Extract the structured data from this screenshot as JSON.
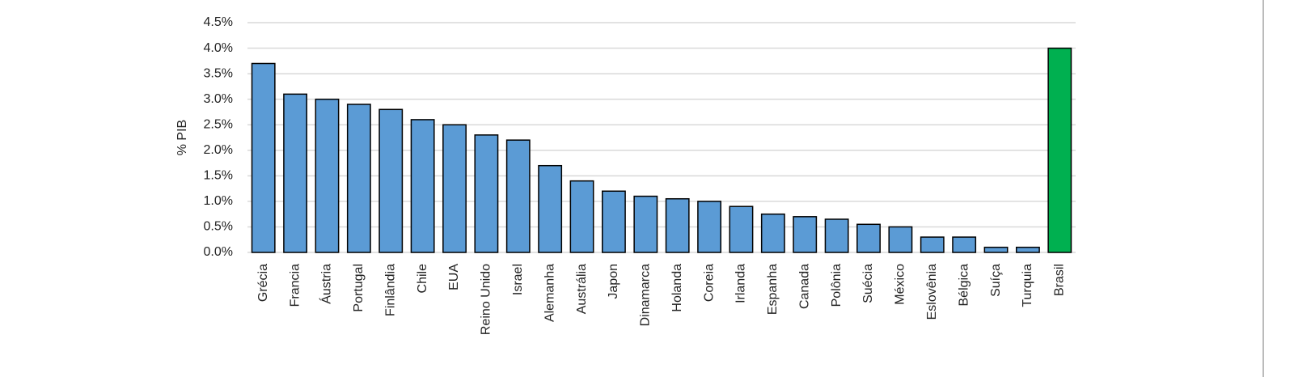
{
  "chart_data": {
    "type": "bar",
    "y_label": "% PIB",
    "categories": [
      "Grécia",
      "Francia",
      "Áustria",
      "Portugal",
      "Finlândia",
      "Chile",
      "EUA",
      "Reino Unido",
      "Israel",
      "Alemanha",
      "Austrália",
      "Japon",
      "Dinamarca",
      "Holanda",
      "Coreia",
      "Irlanda",
      "Espanha",
      "Canada",
      "Polônia",
      "Suécia",
      "México",
      "Eslovênia",
      "Bélgica",
      "Suíça",
      "Turquia",
      "Brasil"
    ],
    "values": [
      3.7,
      3.1,
      3.0,
      2.9,
      2.8,
      2.6,
      2.5,
      2.3,
      2.2,
      1.7,
      1.4,
      1.2,
      1.1,
      1.05,
      1.0,
      0.9,
      0.75,
      0.7,
      0.65,
      0.55,
      0.5,
      0.3,
      0.3,
      0.1,
      0.1,
      4.0
    ],
    "colors": [
      "#5b9bd5",
      "#5b9bd5",
      "#5b9bd5",
      "#5b9bd5",
      "#5b9bd5",
      "#5b9bd5",
      "#5b9bd5",
      "#5b9bd5",
      "#5b9bd5",
      "#5b9bd5",
      "#5b9bd5",
      "#5b9bd5",
      "#5b9bd5",
      "#5b9bd5",
      "#5b9bd5",
      "#5b9bd5",
      "#5b9bd5",
      "#5b9bd5",
      "#5b9bd5",
      "#5b9bd5",
      "#5b9bd5",
      "#5b9bd5",
      "#5b9bd5",
      "#5b9bd5",
      "#5b9bd5",
      "#00b050"
    ],
    "ylim": [
      0,
      4.5
    ],
    "yticks": [
      {
        "value": 0,
        "label": "0.0%"
      },
      {
        "value": 0.5,
        "label": "0.5%"
      },
      {
        "value": 1.0,
        "label": "1.0%"
      },
      {
        "value": 1.5,
        "label": "1.5%"
      },
      {
        "value": 2.0,
        "label": "2.0%"
      },
      {
        "value": 2.5,
        "label": "2.5%"
      },
      {
        "value": 3.0,
        "label": "3.0%"
      },
      {
        "value": 3.5,
        "label": "3.5%"
      },
      {
        "value": 4.0,
        "label": "4.0%"
      },
      {
        "value": 4.5,
        "label": "4.5%"
      }
    ],
    "grid": true
  }
}
